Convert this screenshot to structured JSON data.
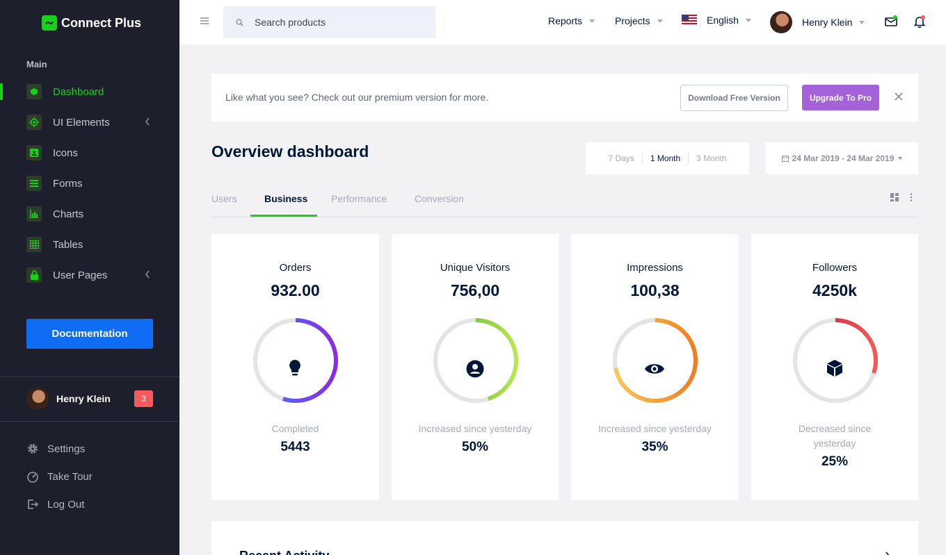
{
  "brand": {
    "name": "Connect Plus"
  },
  "sidebar": {
    "category": "Main",
    "items": [
      {
        "label": "Dashboard",
        "icon": "cube-icon",
        "active": true
      },
      {
        "label": "UI Elements",
        "icon": "crosshair-icon"
      },
      {
        "label": "Icons",
        "icon": "contact-icon"
      },
      {
        "label": "Forms",
        "icon": "list-icon"
      },
      {
        "label": "Charts",
        "icon": "bar-chart-icon"
      },
      {
        "label": "Tables",
        "icon": "table-icon"
      },
      {
        "label": "User Pages",
        "icon": "lock-icon"
      }
    ],
    "documentation_label": "Documentation",
    "user": {
      "name": "Henry Klein",
      "badge": "3"
    },
    "links": [
      {
        "label": "Settings",
        "icon": "gear-icon"
      },
      {
        "label": "Take Tour",
        "icon": "speedometer-icon"
      },
      {
        "label": "Log Out",
        "icon": "logout-icon"
      }
    ]
  },
  "header": {
    "search_placeholder": "Search products",
    "reports_label": "Reports",
    "projects_label": "Projects",
    "language_label": "English",
    "user_name": "Henry Klein"
  },
  "promo": {
    "text": "Like what you see? Check out our premium version for more.",
    "download_label": "Download Free Version",
    "upgrade_label": "Upgrade To Pro"
  },
  "overview": {
    "title": "Overview dashboard",
    "ranges": [
      "7 Days",
      "1 Month",
      "3 Month"
    ],
    "date_range": "24 Mar 2019 - 24 Mar 2019",
    "tabs": [
      "Users",
      "Business",
      "Performance",
      "Conversion"
    ]
  },
  "cards": [
    {
      "title": "Orders",
      "value": "932.00",
      "caption": "Completed",
      "stat": "5443",
      "icon": "lightbulb-icon",
      "progress": 0.55,
      "colors": [
        "#3c7cfa",
        "#8a2be2"
      ]
    },
    {
      "title": "Unique Visitors",
      "value": "756,00",
      "caption": "Increased since yesterday",
      "stat": "50%",
      "icon": "user-circle-icon",
      "progress": 0.45,
      "colors": [
        "#59a838",
        "#b6e84d"
      ]
    },
    {
      "title": "Impressions",
      "value": "100,38",
      "caption": "Increased since yesterday",
      "stat": "35%",
      "icon": "eye-icon",
      "progress": 0.72,
      "colors": [
        "#f7c95a",
        "#f27d1f"
      ]
    },
    {
      "title": "Followers",
      "value": "4250k",
      "caption": "Decreased since yesterday",
      "stat": "25%",
      "icon": "cube-icon",
      "progress": 0.3,
      "colors": [
        "#b51d3b",
        "#f25a5a"
      ]
    }
  ],
  "recent": {
    "title": "Recent Activity"
  }
}
